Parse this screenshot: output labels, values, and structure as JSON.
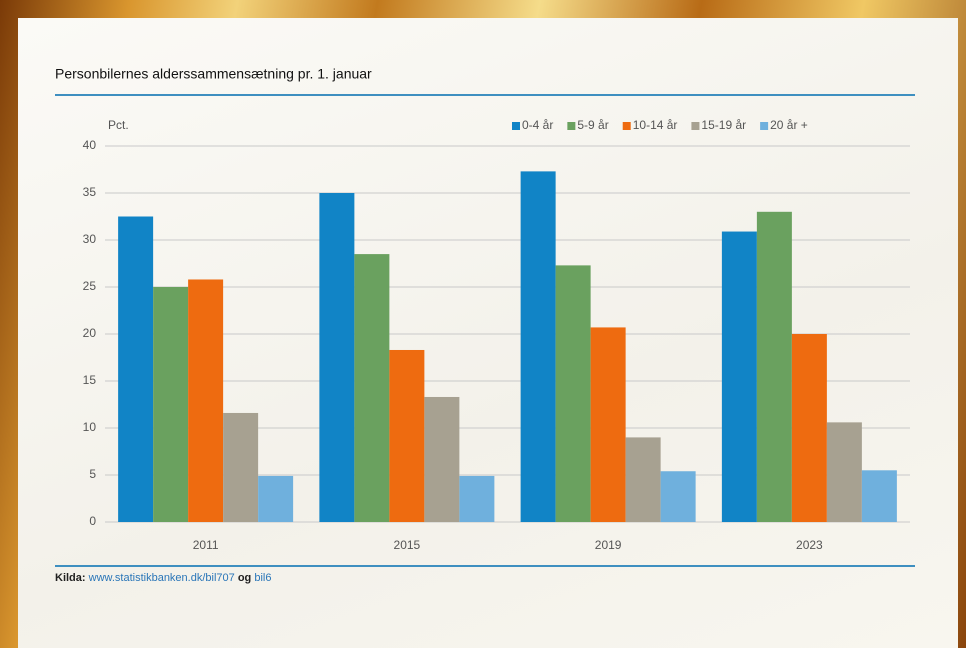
{
  "chart_data": {
    "type": "bar",
    "title": "Personbilernes alderssammensætning pr. 1. januar",
    "ylabel": "Pct.",
    "categories": [
      "2011",
      "2015",
      "2019",
      "2023"
    ],
    "series": [
      {
        "name": "0-4 år",
        "color": "#1184c6",
        "values": [
          32.5,
          35,
          37.3,
          30.9
        ]
      },
      {
        "name": "5-9 år",
        "color": "#6aa15f",
        "values": [
          25,
          28.5,
          27.3,
          33
        ]
      },
      {
        "name": "10-14 år",
        "color": "#ee6b10",
        "values": [
          25.8,
          18.3,
          20.7,
          20
        ]
      },
      {
        "name": "15-19 år",
        "color": "#a7a191",
        "values": [
          11.6,
          13.3,
          9,
          10.6
        ]
      },
      {
        "name": "20 år +",
        "color": "#6fb0dd",
        "values": [
          4.9,
          4.9,
          5.4,
          5.5
        ]
      }
    ],
    "ylim": [
      0,
      40
    ],
    "yticks": [
      0,
      5,
      10,
      15,
      20,
      25,
      30,
      35,
      40
    ],
    "grid": true,
    "legend": "top-right",
    "source": [
      "Kilda:",
      "www.statistikbanken.dk/bil707",
      "og",
      "bil6"
    ]
  }
}
